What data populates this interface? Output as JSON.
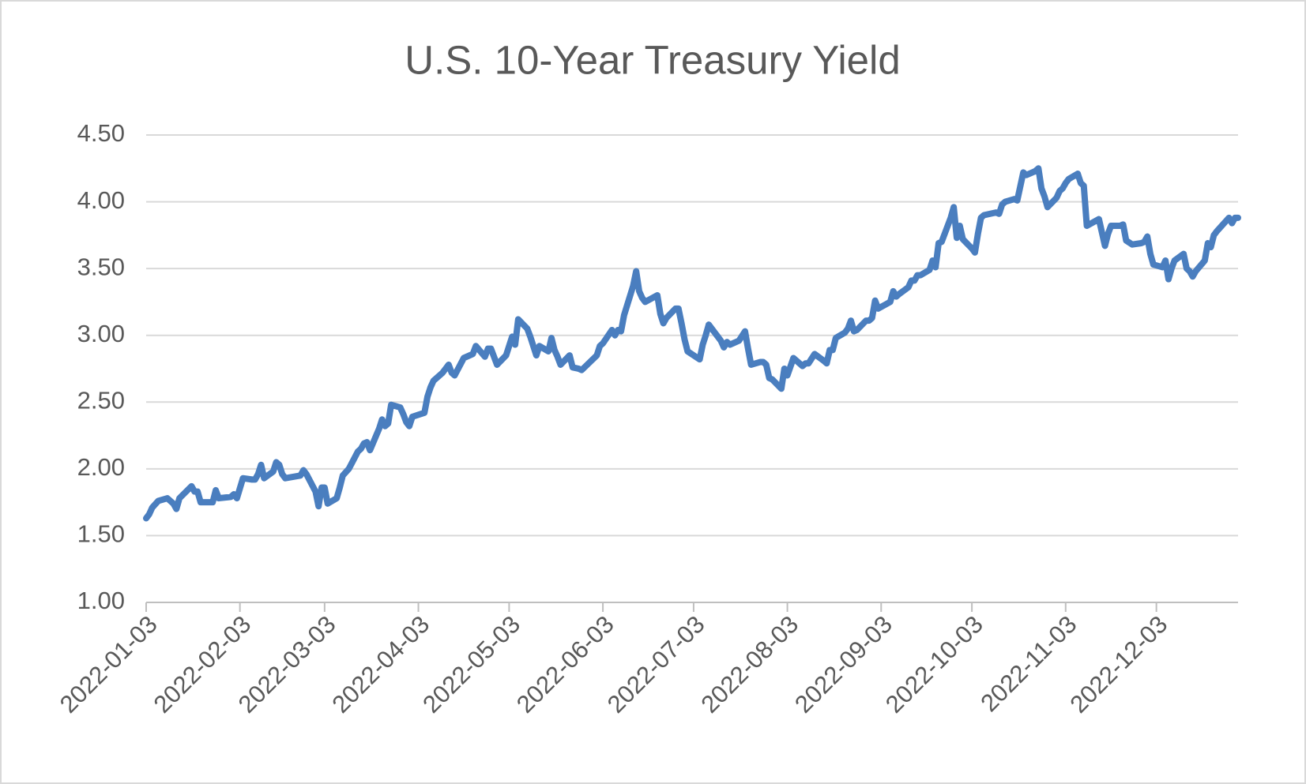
{
  "chart_data": {
    "type": "line",
    "title": "U.S. 10-Year Treasury Yield",
    "color": "#4a7ebf",
    "grid": true,
    "xlim": [
      "2022-01-03",
      "2022-12-30"
    ],
    "xticks": [
      "2022-01-03",
      "2022-02-03",
      "2022-03-03",
      "2022-04-03",
      "2022-05-03",
      "2022-06-03",
      "2022-07-03",
      "2022-08-03",
      "2022-09-03",
      "2022-10-03",
      "2022-11-03",
      "2022-12-03"
    ],
    "ylim": [
      1,
      4.5
    ],
    "yticks": [
      {
        "value": 1,
        "label": "1.00"
      },
      {
        "value": 1.5,
        "label": "1.50"
      },
      {
        "value": 2,
        "label": "2.00"
      },
      {
        "value": 2.5,
        "label": "2.50"
      },
      {
        "value": 3,
        "label": "3.00"
      },
      {
        "value": 3.5,
        "label": "3.50"
      },
      {
        "value": 4,
        "label": "4.00"
      },
      {
        "value": 4.5,
        "label": "4.50"
      }
    ],
    "x": [
      "2022-01-03",
      "2022-01-04",
      "2022-01-05",
      "2022-01-07",
      "2022-01-10",
      "2022-01-12",
      "2022-01-13",
      "2022-01-14",
      "2022-01-18",
      "2022-01-19",
      "2022-01-20",
      "2022-01-21",
      "2022-01-24",
      "2022-01-25",
      "2022-01-26",
      "2022-01-27",
      "2022-01-31",
      "2022-02-01",
      "2022-02-02",
      "2022-02-04",
      "2022-02-07",
      "2022-02-08",
      "2022-02-09",
      "2022-02-10",
      "2022-02-11",
      "2022-02-14",
      "2022-02-15",
      "2022-02-16",
      "2022-02-17",
      "2022-02-18",
      "2022-02-23",
      "2022-02-24",
      "2022-02-25",
      "2022-02-28",
      "2022-03-01",
      "2022-03-02",
      "2022-03-03",
      "2022-03-04",
      "2022-03-07",
      "2022-03-08",
      "2022-03-09",
      "2022-03-11",
      "2022-03-14",
      "2022-03-15",
      "2022-03-16",
      "2022-03-17",
      "2022-03-18",
      "2022-03-21",
      "2022-03-22",
      "2022-03-23",
      "2022-03-24",
      "2022-03-25",
      "2022-03-28",
      "2022-03-29",
      "2022-03-30",
      "2022-03-31",
      "2022-04-01",
      "2022-04-05",
      "2022-04-06",
      "2022-04-07",
      "2022-04-08",
      "2022-04-11",
      "2022-04-12",
      "2022-04-13",
      "2022-04-14",
      "2022-04-15",
      "2022-04-18",
      "2022-04-20",
      "2022-04-21",
      "2022-04-22",
      "2022-04-25",
      "2022-04-26",
      "2022-04-27",
      "2022-04-29",
      "2022-05-02",
      "2022-05-04",
      "2022-05-05",
      "2022-05-06",
      "2022-05-09",
      "2022-05-10",
      "2022-05-12",
      "2022-05-13",
      "2022-05-16",
      "2022-05-17",
      "2022-05-18",
      "2022-05-19",
      "2022-05-20",
      "2022-05-23",
      "2022-05-24",
      "2022-05-26",
      "2022-05-27",
      "2022-06-01",
      "2022-06-02",
      "2022-06-03",
      "2022-06-06",
      "2022-06-07",
      "2022-06-08",
      "2022-06-09",
      "2022-06-10",
      "2022-06-13",
      "2022-06-14",
      "2022-06-15",
      "2022-06-16",
      "2022-06-17",
      "2022-06-21",
      "2022-06-22",
      "2022-06-23",
      "2022-06-24",
      "2022-06-27",
      "2022-06-28",
      "2022-06-29",
      "2022-06-30",
      "2022-07-01",
      "2022-07-05",
      "2022-07-06",
      "2022-07-07",
      "2022-07-08",
      "2022-07-11",
      "2022-07-12",
      "2022-07-13",
      "2022-07-14",
      "2022-07-15",
      "2022-07-18",
      "2022-07-20",
      "2022-07-21",
      "2022-07-22",
      "2022-07-25",
      "2022-07-26",
      "2022-07-27",
      "2022-07-28",
      "2022-07-29",
      "2022-08-01",
      "2022-08-02",
      "2022-08-03",
      "2022-08-05",
      "2022-08-08",
      "2022-08-09",
      "2022-08-10",
      "2022-08-12",
      "2022-08-15",
      "2022-08-16",
      "2022-08-17",
      "2022-08-18",
      "2022-08-19",
      "2022-08-22",
      "2022-08-23",
      "2022-08-24",
      "2022-08-25",
      "2022-08-26",
      "2022-08-29",
      "2022-08-30",
      "2022-08-31",
      "2022-09-01",
      "2022-09-02",
      "2022-09-06",
      "2022-09-07",
      "2022-09-08",
      "2022-09-09",
      "2022-09-12",
      "2022-09-13",
      "2022-09-14",
      "2022-09-15",
      "2022-09-16",
      "2022-09-19",
      "2022-09-20",
      "2022-09-21",
      "2022-09-22",
      "2022-09-23",
      "2022-09-26",
      "2022-09-27",
      "2022-09-28",
      "2022-09-29",
      "2022-09-30",
      "2022-10-03",
      "2022-10-04",
      "2022-10-05",
      "2022-10-06",
      "2022-10-07",
      "2022-10-11",
      "2022-10-12",
      "2022-10-13",
      "2022-10-14",
      "2022-10-17",
      "2022-10-18",
      "2022-10-20",
      "2022-10-21",
      "2022-10-24",
      "2022-10-25",
      "2022-10-26",
      "2022-10-27",
      "2022-10-28",
      "2022-10-31",
      "2022-11-01",
      "2022-11-02",
      "2022-11-03",
      "2022-11-04",
      "2022-11-07",
      "2022-11-08",
      "2022-11-09",
      "2022-11-10",
      "2022-11-14",
      "2022-11-15",
      "2022-11-16",
      "2022-11-17",
      "2022-11-18",
      "2022-11-21",
      "2022-11-22",
      "2022-11-23",
      "2022-11-25",
      "2022-11-28",
      "2022-11-29",
      "2022-11-30",
      "2022-12-01",
      "2022-12-02",
      "2022-12-05",
      "2022-12-06",
      "2022-12-07",
      "2022-12-08",
      "2022-12-09",
      "2022-12-12",
      "2022-12-13",
      "2022-12-14",
      "2022-12-15",
      "2022-12-16",
      "2022-12-19",
      "2022-12-20",
      "2022-12-21",
      "2022-12-22",
      "2022-12-23",
      "2022-12-27",
      "2022-12-28",
      "2022-12-29",
      "2022-12-30"
    ],
    "values": [
      1.63,
      1.66,
      1.71,
      1.76,
      1.78,
      1.74,
      1.7,
      1.78,
      1.87,
      1.83,
      1.83,
      1.75,
      1.75,
      1.75,
      1.84,
      1.78,
      1.79,
      1.81,
      1.78,
      1.93,
      1.92,
      1.92,
      1.96,
      2.03,
      1.93,
      1.98,
      2.05,
      2.03,
      1.96,
      1.93,
      1.95,
      1.99,
      1.96,
      1.83,
      1.72,
      1.86,
      1.86,
      1.74,
      1.78,
      1.86,
      1.95,
      2.0,
      2.13,
      2.15,
      2.19,
      2.2,
      2.14,
      2.3,
      2.37,
      2.32,
      2.34,
      2.48,
      2.46,
      2.41,
      2.35,
      2.32,
      2.39,
      2.42,
      2.54,
      2.61,
      2.66,
      2.72,
      2.75,
      2.78,
      2.72,
      2.7,
      2.83,
      2.85,
      2.86,
      2.92,
      2.84,
      2.9,
      2.9,
      2.78,
      2.85,
      2.99,
      2.93,
      3.12,
      3.05,
      2.99,
      2.85,
      2.92,
      2.88,
      2.98,
      2.89,
      2.84,
      2.78,
      2.85,
      2.76,
      2.75,
      2.74,
      2.85,
      2.92,
      2.94,
      3.04,
      3.0,
      3.04,
      3.03,
      3.15,
      3.37,
      3.48,
      3.33,
      3.28,
      3.25,
      3.3,
      3.16,
      3.09,
      3.13,
      3.2,
      3.2,
      3.09,
      2.97,
      2.88,
      2.82,
      2.93,
      3.0,
      3.08,
      2.99,
      2.96,
      2.91,
      2.95,
      2.93,
      2.96,
      3.03,
      2.9,
      2.78,
      2.8,
      2.8,
      2.78,
      2.68,
      2.67,
      2.6,
      2.75,
      2.7,
      2.83,
      2.77,
      2.79,
      2.79,
      2.86,
      2.81,
      2.79,
      2.89,
      2.89,
      2.98,
      3.02,
      3.05,
      3.11,
      3.03,
      3.04,
      3.11,
      3.11,
      3.13,
      3.26,
      3.2,
      3.25,
      3.33,
      3.29,
      3.31,
      3.36,
      3.41,
      3.41,
      3.45,
      3.45,
      3.49,
      3.56,
      3.51,
      3.69,
      3.7,
      3.88,
      3.96,
      3.73,
      3.82,
      3.72,
      3.65,
      3.62,
      3.76,
      3.88,
      3.9,
      3.92,
      3.91,
      3.98,
      4.0,
      4.02,
      4.01,
      4.22,
      4.2,
      4.23,
      4.25,
      4.1,
      4.04,
      3.96,
      4.03,
      4.08,
      4.1,
      4.14,
      4.17,
      4.21,
      4.14,
      4.12,
      3.82,
      3.87,
      3.77,
      3.67,
      3.76,
      3.82,
      3.82,
      3.83,
      3.71,
      3.68,
      3.69,
      3.7,
      3.74,
      3.61,
      3.53,
      3.51,
      3.56,
      3.42,
      3.5,
      3.56,
      3.61,
      3.5,
      3.48,
      3.44,
      3.48,
      3.56,
      3.69,
      3.66,
      3.75,
      3.78,
      3.88,
      3.84,
      3.88,
      3.88
    ]
  }
}
